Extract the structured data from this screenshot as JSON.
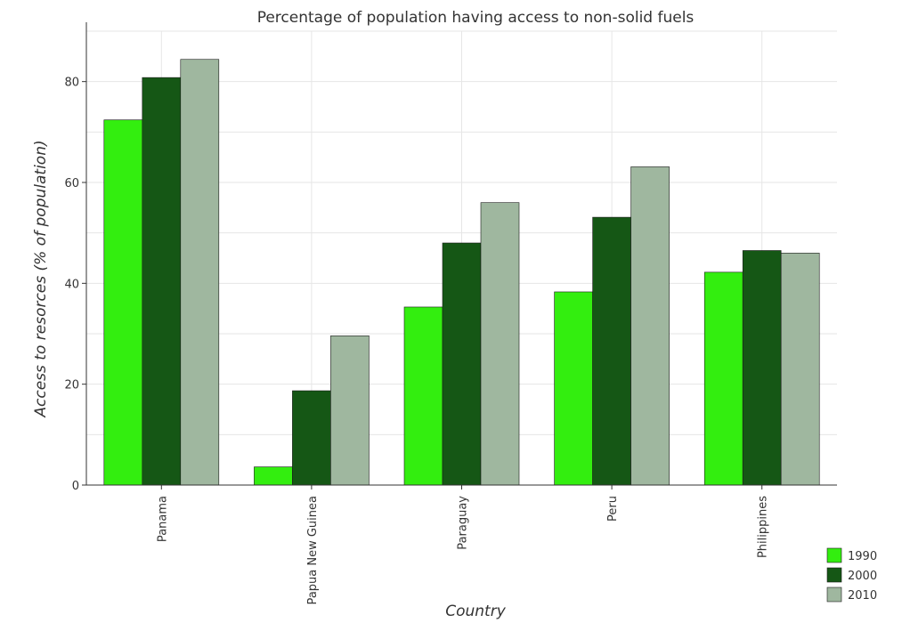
{
  "chart_data": {
    "type": "bar",
    "title": "Percentage of population having access to non-solid fuels",
    "xlabel": "Country",
    "ylabel": "Access to resorces (% of population)",
    "categories": [
      "Panama",
      "Papua New Guinea",
      "Paraguay",
      "Peru",
      "Philippines"
    ],
    "series": [
      {
        "name": "1990",
        "color": "#33ee0f",
        "values": [
          72.4,
          3.6,
          35.3,
          38.3,
          42.2
        ]
      },
      {
        "name": "2000",
        "color": "#155715",
        "values": [
          80.8,
          18.7,
          48.0,
          53.1,
          46.5
        ]
      },
      {
        "name": "2010",
        "color": "#9fb79f",
        "values": [
          84.4,
          29.6,
          56.0,
          63.1,
          46.0
        ]
      }
    ],
    "ylim": [
      0,
      90
    ],
    "yticks": [
      0,
      20,
      40,
      60,
      80
    ],
    "grid": true,
    "legend_position": "bottom-right"
  }
}
